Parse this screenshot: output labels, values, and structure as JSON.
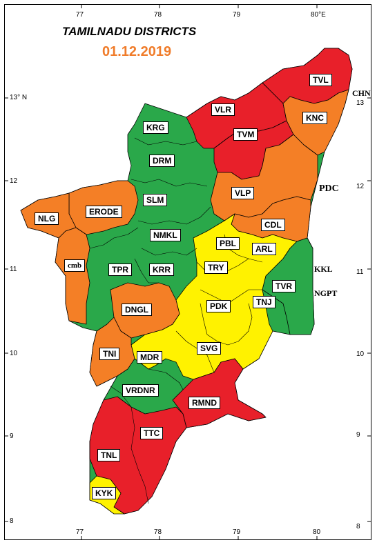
{
  "map": {
    "title": "TAMILNADU DISTRICTS",
    "date": "01.12.2019",
    "colors": {
      "red": "#e8202a",
      "orange": "#f47f26",
      "green": "#2aa84a",
      "yellow": "#fff200",
      "border": "#000000"
    },
    "longitude_labels": [
      "77",
      "78",
      "79",
      "80"
    ],
    "latitude_labels": [
      "13",
      "12",
      "11",
      "10",
      "9",
      "8"
    ],
    "top_right_lon": "80°E",
    "top_left_lat": "13° N",
    "districts": [
      {
        "code": "TVL",
        "color": "red"
      },
      {
        "code": "VLR",
        "color": "red"
      },
      {
        "code": "KNC",
        "color": "orange"
      },
      {
        "code": "KRG",
        "color": "green"
      },
      {
        "code": "TVM",
        "color": "red"
      },
      {
        "code": "DRM",
        "color": "green"
      },
      {
        "code": "VLP",
        "color": "orange"
      },
      {
        "code": "SLM",
        "color": "green"
      },
      {
        "code": "ERODE",
        "color": "orange"
      },
      {
        "code": "NLG",
        "color": "orange"
      },
      {
        "code": "CDL",
        "color": "orange"
      },
      {
        "code": "NMKL",
        "color": "green"
      },
      {
        "code": "PBL",
        "color": "yellow"
      },
      {
        "code": "ARL",
        "color": "yellow"
      },
      {
        "code": "cmb",
        "color": "orange"
      },
      {
        "code": "TPR",
        "color": "green"
      },
      {
        "code": "KRR",
        "color": "green"
      },
      {
        "code": "TRY",
        "color": "yellow"
      },
      {
        "code": "TVR",
        "color": "green"
      },
      {
        "code": "PDK",
        "color": "yellow"
      },
      {
        "code": "TNJ",
        "color": "yellow"
      },
      {
        "code": "DNGL",
        "color": "orange"
      },
      {
        "code": "TNI",
        "color": "orange"
      },
      {
        "code": "MDR",
        "color": "yellow"
      },
      {
        "code": "SVG",
        "color": "yellow"
      },
      {
        "code": "VRDNR",
        "color": "green"
      },
      {
        "code": "RMND",
        "color": "red"
      },
      {
        "code": "TTC",
        "color": "red"
      },
      {
        "code": "TNL",
        "color": "red"
      },
      {
        "code": "KYK",
        "color": "yellow"
      }
    ],
    "outside_labels": [
      "CHN",
      "PDC",
      "KKL",
      "NGPT"
    ]
  }
}
